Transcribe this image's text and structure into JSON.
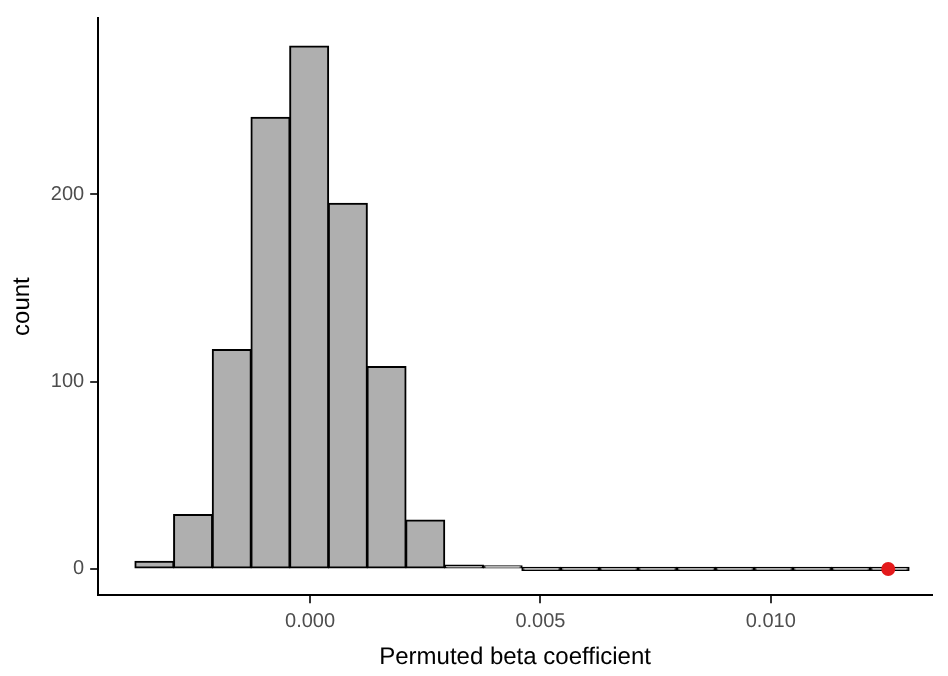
{
  "chart_data": {
    "type": "histogram",
    "xlabel": "Permuted beta coefficient",
    "ylabel": "count",
    "bins": [
      -0.0038,
      -0.00296,
      -0.00212,
      -0.00128,
      -0.00044,
      0.0004,
      0.00124,
      0.00208,
      0.00292,
      0.00376,
      0.0046,
      0.00544,
      0.00628,
      0.00712,
      0.00796,
      0.0088,
      0.00964,
      0.01048,
      0.01132,
      0.01216,
      0.013
    ],
    "values": [
      4,
      29,
      117,
      241,
      279,
      195,
      108,
      26,
      2,
      1,
      0,
      0,
      0,
      0,
      0,
      0,
      0,
      0,
      0,
      0
    ],
    "color": "#afafaf",
    "series": [
      {
        "type": "scatter",
        "x": [
          0.01255
        ],
        "values": [
          0
        ],
        "color": "#e41a1c"
      }
    ],
    "marker": "circle",
    "xlim": [
      -0.0046,
      0.0135
    ],
    "xticks": [
      {
        "value": 0,
        "label": "0.000"
      },
      {
        "value": 0.005,
        "label": "0.005"
      },
      {
        "value": 0.01,
        "label": "0.010"
      }
    ],
    "ylim": [
      -14,
      294
    ],
    "yticks": [
      0,
      100,
      200
    ],
    "grid": false,
    "legend": false
  }
}
